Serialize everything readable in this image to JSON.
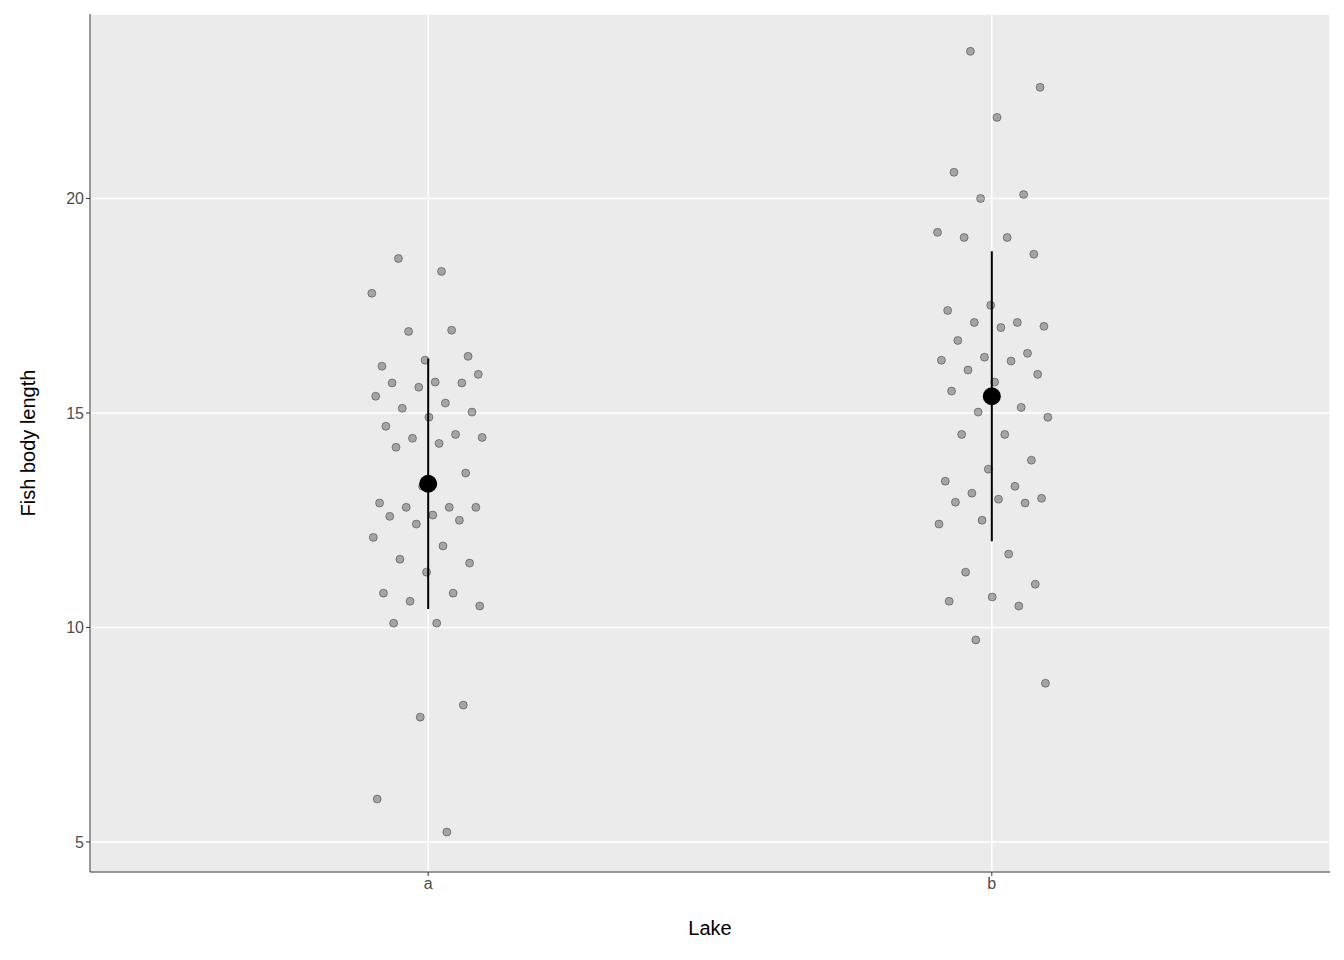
{
  "chart_data": {
    "type": "scatter",
    "x_label": "Lake",
    "y_label": "Fish body length",
    "categories": [
      "a",
      "b"
    ],
    "values": [
      [
        17.79,
        18.3,
        18.6,
        16.32,
        16.23,
        16.09,
        16.93,
        16.9,
        15.9,
        15.72,
        15.7,
        15.7,
        15.6,
        15.39,
        15.23,
        15.11,
        15.02,
        14.9,
        14.69,
        14.5,
        14.41,
        14.43,
        14.29,
        14.2,
        13.6,
        13.29,
        12.9,
        12.8,
        12.8,
        12.8,
        12.62,
        12.59,
        12.5,
        12.41,
        12.1,
        11.9,
        11.59,
        11.5,
        11.29,
        10.8,
        10.8,
        10.61,
        10.5,
        10.1,
        10.1,
        8.19,
        7.91,
        6.0,
        5.23
      ],
      [
        23.43,
        22.59,
        21.89,
        20.61,
        20.09,
        20.0,
        19.21,
        19.09,
        19.09,
        18.7,
        17.51,
        17.39,
        17.11,
        17.11,
        17.02,
        16.99,
        16.69,
        16.39,
        16.3,
        16.23,
        16.21,
        16.0,
        15.9,
        15.72,
        15.51,
        15.13,
        15.02,
        14.9,
        14.5,
        14.5,
        13.9,
        13.69,
        13.41,
        13.29,
        13.13,
        13.01,
        12.99,
        12.92,
        12.9,
        12.5,
        12.41,
        11.71,
        11.29,
        11.01,
        10.71,
        10.61,
        10.5,
        9.71,
        8.7
      ]
    ],
    "means": [
      13.35,
      15.39
    ],
    "errors": [
      2.92,
      3.38
    ],
    "color": "#000000",
    "ylim": [
      4.3,
      24.3
    ],
    "yticks": [
      5,
      10,
      15,
      20
    ],
    "grid": true
  }
}
